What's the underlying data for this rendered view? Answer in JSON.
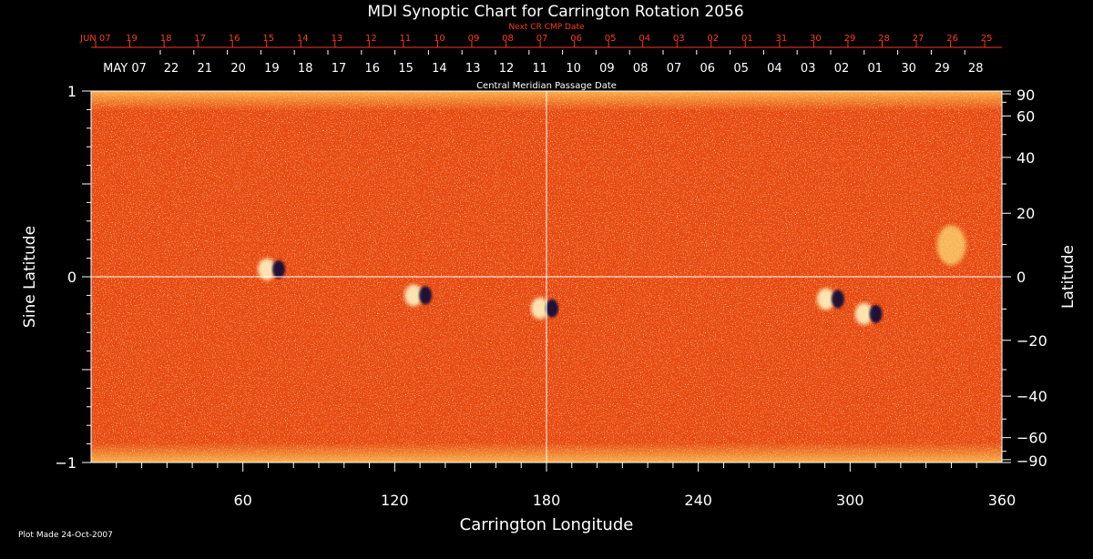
{
  "chart_data": {
    "type": "heatmap",
    "title": "MDI Synoptic Chart for Carrington Rotation 2056",
    "xlabel": "Carrington Longitude",
    "ylabel_left": "Sine Latitude",
    "ylabel_right": "Latitude",
    "xlim": [
      0,
      360
    ],
    "ylim": [
      -1,
      1
    ],
    "x_ticks": [
      60,
      120,
      180,
      240,
      300,
      360
    ],
    "y_ticks_left": [
      1,
      0,
      -1
    ],
    "y_tick_labels_left": [
      "1",
      "0",
      "−1"
    ],
    "y_ticks_right_deg": [
      90,
      60,
      40,
      20,
      0,
      -20,
      -40,
      -60,
      -90
    ],
    "y_tick_labels_right": [
      "90",
      "60",
      "40",
      "20",
      "0",
      "−20",
      "−40",
      "−60",
      "−90"
    ],
    "next_cr_axis": {
      "label": "Next CR CMP Date",
      "color": "#ff3a1a",
      "tick_labels": [
        "JUN 07",
        "19",
        "18",
        "17",
        "16",
        "15",
        "14",
        "13",
        "12",
        "11",
        "10",
        "09",
        "08",
        "07",
        "06",
        "05",
        "04",
        "03",
        "02",
        "01",
        "31",
        "30",
        "29",
        "28",
        "27",
        "26",
        "25"
      ]
    },
    "cmp_axis": {
      "label": "Central Meridian Passage Date",
      "tick_labels": [
        "MAY 07",
        "22",
        "21",
        "20",
        "19",
        "18",
        "17",
        "16",
        "15",
        "14",
        "13",
        "12",
        "11",
        "10",
        "09",
        "08",
        "07",
        "06",
        "05",
        "04",
        "03",
        "02",
        "01",
        "30",
        "29",
        "28"
      ]
    },
    "grid_lines": {
      "longitude": [
        180
      ],
      "sine_latitude": [
        0
      ]
    },
    "active_regions": [
      {
        "lon": 72,
        "sinlat": 0.04,
        "polarity": "mixed"
      },
      {
        "lon": 130,
        "sinlat": -0.1,
        "polarity": "mixed"
      },
      {
        "lon": 180,
        "sinlat": -0.17,
        "polarity": "mixed"
      },
      {
        "lon": 293,
        "sinlat": -0.12,
        "polarity": "mixed"
      },
      {
        "lon": 308,
        "sinlat": -0.2,
        "polarity": "mixed"
      },
      {
        "lon": 340,
        "sinlat": 0.17,
        "polarity": "positive"
      }
    ],
    "colors": {
      "background": "#000000",
      "field_base": "#ee4a0c",
      "positive": "#ffe080",
      "negative": "#1a0f50",
      "axes": "#ffffff"
    }
  },
  "footer": {
    "plot_made": "Plot Made 24-Oct-2007"
  }
}
